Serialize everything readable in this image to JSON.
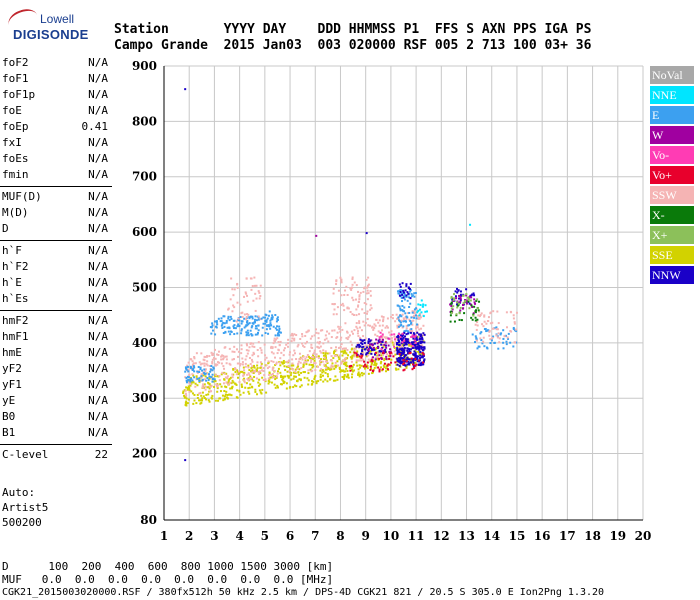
{
  "header": {
    "row1": "Station       YYYY DAY    DDD HHMMSS P1  FFS S AXN PPS IGA PS",
    "row2": "Campo Grande  2015 Jan03  003 020000 RSF 005 2 713 100 03+ 36"
  },
  "logo": {
    "line1": "Lowell",
    "line2": "DIGISONDE"
  },
  "params": [
    {
      "k": "foF2",
      "v": "N/A"
    },
    {
      "k": "foF1",
      "v": "N/A"
    },
    {
      "k": "foF1p",
      "v": "N/A"
    },
    {
      "k": "foE",
      "v": "N/A"
    },
    {
      "k": "foEp",
      "v": "0.41"
    },
    {
      "k": "fxI",
      "v": "N/A"
    },
    {
      "k": "foEs",
      "v": "N/A"
    },
    {
      "k": "fmin",
      "v": "N/A"
    },
    {
      "k": "MUF(D)",
      "v": "N/A"
    },
    {
      "k": "M(D)",
      "v": "N/A"
    },
    {
      "k": "D",
      "v": "N/A"
    },
    {
      "k": "h`F",
      "v": "N/A"
    },
    {
      "k": "h`F2",
      "v": "N/A"
    },
    {
      "k": "h`E",
      "v": "N/A"
    },
    {
      "k": "h`Es",
      "v": "N/A"
    },
    {
      "k": "hmF2",
      "v": "N/A"
    },
    {
      "k": "hmF1",
      "v": "N/A"
    },
    {
      "k": "hmE",
      "v": "N/A"
    },
    {
      "k": "yF2",
      "v": "N/A"
    },
    {
      "k": "yF1",
      "v": "N/A"
    },
    {
      "k": "yE",
      "v": "N/A"
    },
    {
      "k": "B0",
      "v": "N/A"
    },
    {
      "k": "B1",
      "v": "N/A"
    },
    {
      "k": "C-level",
      "v": "22"
    }
  ],
  "auto": {
    "line1": "Auto:",
    "line2": "Artist5",
    "line3": "500200"
  },
  "bottom": {
    "d_row": "D      100  200  400  600  800 1000 1500 3000 [km]",
    "muf_row": "MUF   0.0  0.0  0.0  0.0  0.0  0.0  0.0  0.0 [MHz]",
    "footer": "CGK21_2015003020000.RSF / 380fx512h 50 kHz 2.5 km / DPS-4D CGK21 821 / 20.5 S 305.0 E Ion2Png 1.3.20"
  },
  "legend": [
    {
      "label": "NoVal",
      "color": "#a8a8a8"
    },
    {
      "label": "NNE",
      "color": "#00e5ff"
    },
    {
      "label": "E",
      "color": "#3ca0f0"
    },
    {
      "label": "W",
      "color": "#a000a0"
    },
    {
      "label": "Vo-",
      "color": "#ff3cb4"
    },
    {
      "label": "Vo+",
      "color": "#e8002c"
    },
    {
      "label": "SSW",
      "color": "#f5b4b4"
    },
    {
      "label": "X-",
      "color": "#0a7a0a"
    },
    {
      "label": "X+",
      "color": "#8cc05a"
    },
    {
      "label": "SSE",
      "color": "#d2d200"
    },
    {
      "label": "NNW",
      "color": "#1a00c8"
    }
  ],
  "chart_data": {
    "type": "scatter",
    "xlim": [
      1,
      20
    ],
    "ylim": [
      80,
      900
    ],
    "xticks": [
      1,
      2,
      3,
      4,
      5,
      6,
      7,
      8,
      9,
      10,
      11,
      12,
      13,
      14,
      15,
      16,
      17,
      18,
      19,
      20
    ],
    "yticks": [
      80,
      200,
      300,
      400,
      500,
      600,
      700,
      800,
      900
    ],
    "grid": true,
    "clusters": [
      {
        "series": "SSE",
        "x": [
          1.7,
          11.3
        ],
        "y": [
          285,
          340
        ],
        "slope": 8,
        "n": 700
      },
      {
        "series": "SSW",
        "x": [
          1.8,
          11.3
        ],
        "y": [
          305,
          380
        ],
        "slope": 9,
        "n": 650
      },
      {
        "series": "E",
        "x": [
          2.8,
          5.6
        ],
        "y": [
          415,
          450
        ],
        "slope": 0,
        "n": 150
      },
      {
        "series": "E",
        "x": [
          1.8,
          3.0
        ],
        "y": [
          330,
          360
        ],
        "slope": 0,
        "n": 60
      },
      {
        "series": "E",
        "x": [
          10.2,
          11.0
        ],
        "y": [
          420,
          500
        ],
        "slope": 0,
        "n": 80
      },
      {
        "series": "E",
        "x": [
          13.2,
          15.0
        ],
        "y": [
          390,
          430
        ],
        "slope": 0,
        "n": 50
      },
      {
        "series": "SSW",
        "x": [
          3.5,
          4.8
        ],
        "y": [
          440,
          520
        ],
        "slope": 0,
        "n": 50
      },
      {
        "series": "SSW",
        "x": [
          7.6,
          9.2
        ],
        "y": [
          450,
          520
        ],
        "slope": 0,
        "n": 80
      },
      {
        "series": "SSW",
        "x": [
          13.3,
          15.0
        ],
        "y": [
          400,
          460
        ],
        "slope": 0,
        "n": 60
      },
      {
        "series": "NNW",
        "x": [
          10.2,
          11.3
        ],
        "y": [
          360,
          420
        ],
        "slope": 0,
        "n": 260
      },
      {
        "series": "NNW",
        "x": [
          8.6,
          9.8
        ],
        "y": [
          380,
          410
        ],
        "slope": 0,
        "n": 60
      },
      {
        "series": "NNW",
        "x": [
          10.3,
          10.8
        ],
        "y": [
          480,
          510
        ],
        "slope": 0,
        "n": 20
      },
      {
        "series": "NNW",
        "x": [
          12.3,
          13.3
        ],
        "y": [
          470,
          500
        ],
        "slope": 0,
        "n": 30
      },
      {
        "series": "W",
        "x": [
          12.3,
          13.3
        ],
        "y": [
          455,
          490
        ],
        "slope": 0,
        "n": 30
      },
      {
        "series": "W",
        "x": [
          9.0,
          10.0
        ],
        "y": [
          370,
          410
        ],
        "slope": 0,
        "n": 30
      },
      {
        "series": "X-",
        "x": [
          12.3,
          13.5
        ],
        "y": [
          440,
          480
        ],
        "slope": 0,
        "n": 30
      },
      {
        "series": "X+",
        "x": [
          12.3,
          13.5
        ],
        "y": [
          450,
          490
        ],
        "slope": 0,
        "n": 30
      },
      {
        "series": "Vo+",
        "x": [
          8.3,
          11.3
        ],
        "y": [
          350,
          385
        ],
        "slope": 0,
        "n": 60
      },
      {
        "series": "Vo-",
        "x": [
          9.5,
          11.0
        ],
        "y": [
          390,
          420
        ],
        "slope": 0,
        "n": 25
      },
      {
        "series": "E",
        "x": [
          4.8,
          5.4
        ],
        "y": [
          430,
          460
        ],
        "slope": 0,
        "n": 20
      },
      {
        "series": "NNE",
        "x": [
          11.0,
          11.4
        ],
        "y": [
          450,
          480
        ],
        "slope": 0,
        "n": 15
      }
    ]
  }
}
